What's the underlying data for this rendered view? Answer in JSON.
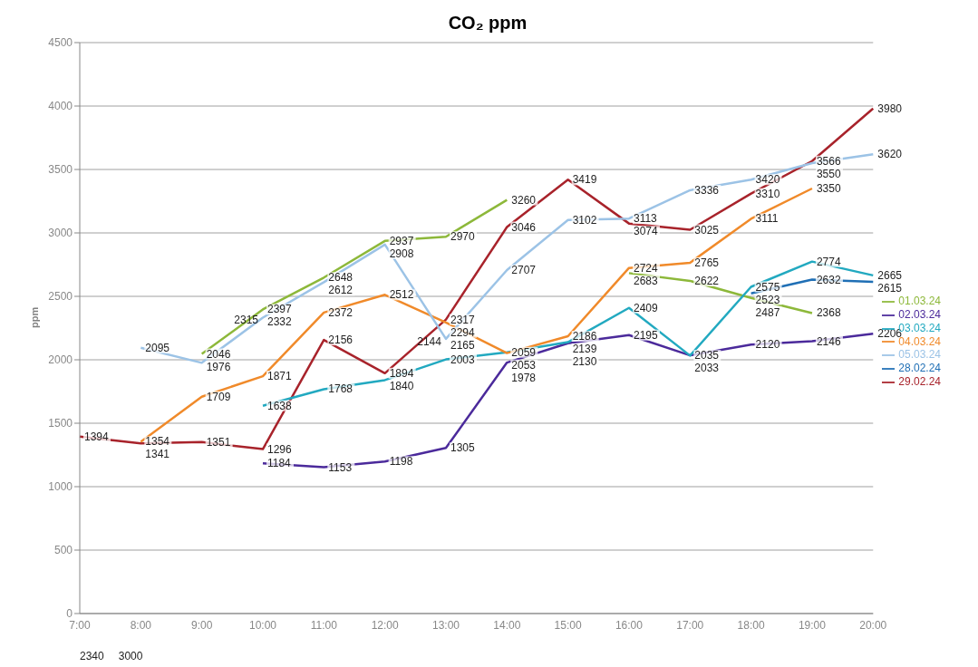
{
  "chart_data": {
    "type": "line",
    "title": "CO₂ ppm",
    "ylabel": "ppm",
    "categories": [
      "7:00",
      "8:00",
      "9:00",
      "10:00",
      "11:00",
      "12:00",
      "13:00",
      "14:00",
      "15:00",
      "16:00",
      "17:00",
      "18:00",
      "19:00",
      "20:00"
    ],
    "series": [
      {
        "name": "28.02.24",
        "color": "#1f6fb5",
        "values": [
          null,
          null,
          null,
          null,
          null,
          null,
          null,
          null,
          null,
          null,
          null,
          2523,
          2632,
          2615
        ]
      },
      {
        "name": "29.02.24",
        "color": "#a8232b",
        "values": [
          1394,
          1341,
          1351,
          1296,
          2156,
          1894,
          2317,
          3046,
          3419,
          3074,
          3025,
          3310,
          3566,
          3980
        ]
      },
      {
        "name": "01.03.24",
        "color": "#8db83a",
        "values": [
          null,
          null,
          2046,
          2397,
          2648,
          2937,
          2970,
          3260,
          null,
          2683,
          2622,
          2487,
          2368,
          null
        ]
      },
      {
        "name": "02.03.24",
        "color": "#4b2a9b",
        "values": [
          null,
          null,
          null,
          1184,
          1153,
          1198,
          1305,
          1978,
          2130,
          2195,
          2035,
          2120,
          2146,
          2206
        ]
      },
      {
        "name": "03.03.24",
        "color": "#22a9c0",
        "values": [
          null,
          null,
          null,
          1638,
          1768,
          1840,
          2003,
          2059,
          2139,
          2409,
          2033,
          2575,
          2774,
          2665
        ]
      },
      {
        "name": "04.03.24",
        "color": "#f08a2a",
        "values": [
          null,
          1354,
          1709,
          1871,
          2372,
          2512,
          2294,
          2053,
          2186,
          2724,
          2765,
          3111,
          3350,
          null
        ]
      },
      {
        "name": "05.03.24",
        "color": "#9cc3e6",
        "values": [
          null,
          2095,
          1976,
          2332,
          2612,
          2908,
          2165,
          2707,
          3102,
          3113,
          3336,
          3420,
          3550,
          3620
        ]
      }
    ],
    "annotations": [
      {
        "text": "2315",
        "x": "10:00",
        "y": 2315
      },
      "2340",
      {
        "text": "2144",
        "x": "13:00",
        "y": 2144
      },
      "3000"
    ],
    "ylim": [
      0,
      4500
    ],
    "yticks": [
      0,
      500,
      1000,
      1500,
      2000,
      2500,
      3000,
      3500,
      4000,
      4500
    ],
    "grid": "y",
    "legend": "right",
    "data_labels": true,
    "marker": "none",
    "line_style": "solid"
  }
}
